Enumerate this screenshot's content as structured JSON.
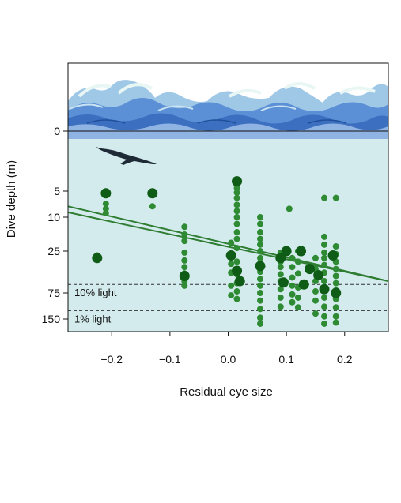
{
  "chart_data": {
    "type": "scatter",
    "title": "",
    "xlabel": "Residual eye size",
    "ylabel": "Dive depth (m)",
    "xlim": [
      -0.275,
      0.275
    ],
    "x_ticks": [
      -0.2,
      -0.1,
      0.0,
      0.1,
      0.2
    ],
    "x_tick_labels": [
      "−0.2",
      "−0.1",
      "0.0",
      "0.1",
      "0.2"
    ],
    "y_scale": "log-like (depth increases downward)",
    "y_ticks": [
      0,
      5,
      10,
      25,
      75,
      150
    ],
    "y_tick_labels": [
      "0",
      "5",
      "10",
      "25",
      "75",
      "150"
    ],
    "grid": false,
    "legend": "none",
    "reference_lines": [
      {
        "label": "10% light",
        "depth": 60,
        "style": "dashed"
      },
      {
        "label": "1% light",
        "depth": 120,
        "style": "dashed"
      }
    ],
    "regression_lines": [
      {
        "x": [
          -0.275,
          0.275
        ],
        "y": [
          7.5,
          55
        ]
      },
      {
        "x": [
          -0.275,
          0.275
        ],
        "y": [
          8.8,
          55
        ]
      }
    ],
    "points_small": [
      [
        -0.21,
        7
      ],
      [
        -0.21,
        8
      ],
      [
        -0.21,
        9
      ],
      [
        -0.225,
        28
      ],
      [
        -0.13,
        7.5
      ],
      [
        -0.075,
        13
      ],
      [
        -0.075,
        16
      ],
      [
        -0.075,
        19
      ],
      [
        -0.075,
        26
      ],
      [
        -0.075,
        32
      ],
      [
        -0.075,
        38
      ],
      [
        -0.075,
        45
      ],
      [
        -0.075,
        55
      ],
      [
        -0.075,
        62
      ],
      [
        0.005,
        20
      ],
      [
        0.005,
        28
      ],
      [
        0.005,
        35
      ],
      [
        0.005,
        44
      ],
      [
        0.005,
        62
      ],
      [
        0.005,
        80
      ],
      [
        0.015,
        4.5
      ],
      [
        0.015,
        5.2
      ],
      [
        0.015,
        6
      ],
      [
        0.015,
        7.2
      ],
      [
        0.015,
        8.5
      ],
      [
        0.015,
        10
      ],
      [
        0.015,
        12
      ],
      [
        0.015,
        15
      ],
      [
        0.015,
        18
      ],
      [
        0.015,
        23
      ],
      [
        0.015,
        33
      ],
      [
        0.015,
        46
      ],
      [
        0.015,
        58
      ],
      [
        0.015,
        72
      ],
      [
        0.015,
        88
      ],
      [
        0.055,
        10
      ],
      [
        0.055,
        12
      ],
      [
        0.055,
        15
      ],
      [
        0.055,
        18
      ],
      [
        0.055,
        21
      ],
      [
        0.055,
        25
      ],
      [
        0.055,
        30
      ],
      [
        0.055,
        36
      ],
      [
        0.055,
        43
      ],
      [
        0.055,
        52
      ],
      [
        0.055,
        62
      ],
      [
        0.055,
        75
      ],
      [
        0.055,
        92
      ],
      [
        0.055,
        115
      ],
      [
        0.055,
        145
      ],
      [
        0.055,
        170
      ],
      [
        0.09,
        26
      ],
      [
        0.09,
        33
      ],
      [
        0.09,
        38
      ],
      [
        0.09,
        46
      ],
      [
        0.09,
        55
      ],
      [
        0.09,
        68
      ],
      [
        0.09,
        85
      ],
      [
        0.09,
        108
      ],
      [
        0.105,
        8
      ],
      [
        0.11,
        30
      ],
      [
        0.11,
        38
      ],
      [
        0.11,
        50
      ],
      [
        0.11,
        62
      ],
      [
        0.11,
        78
      ],
      [
        0.11,
        96
      ],
      [
        0.12,
        25
      ],
      [
        0.12,
        33
      ],
      [
        0.12,
        45
      ],
      [
        0.12,
        65
      ],
      [
        0.12,
        85
      ],
      [
        0.12,
        110
      ],
      [
        0.15,
        30
      ],
      [
        0.15,
        40
      ],
      [
        0.15,
        55
      ],
      [
        0.15,
        72
      ],
      [
        0.15,
        92
      ],
      [
        0.15,
        130
      ],
      [
        0.165,
        6
      ],
      [
        0.165,
        17
      ],
      [
        0.165,
        21
      ],
      [
        0.165,
        26
      ],
      [
        0.165,
        30
      ],
      [
        0.165,
        36
      ],
      [
        0.165,
        44
      ],
      [
        0.165,
        55
      ],
      [
        0.165,
        68
      ],
      [
        0.165,
        85
      ],
      [
        0.165,
        108
      ],
      [
        0.165,
        140
      ],
      [
        0.165,
        170
      ],
      [
        0.185,
        6
      ],
      [
        0.185,
        22
      ],
      [
        0.185,
        27
      ],
      [
        0.185,
        33
      ],
      [
        0.185,
        40
      ],
      [
        0.185,
        48
      ],
      [
        0.185,
        58
      ],
      [
        0.185,
        70
      ],
      [
        0.185,
        88
      ],
      [
        0.185,
        110
      ],
      [
        0.185,
        140
      ],
      [
        0.185,
        165
      ]
    ],
    "points_large": [
      [
        -0.21,
        5.3
      ],
      [
        -0.13,
        5.3
      ],
      [
        -0.225,
        30
      ],
      [
        -0.075,
        48
      ],
      [
        0.015,
        3.5
      ],
      [
        0.005,
        28
      ],
      [
        0.015,
        42
      ],
      [
        0.02,
        55
      ],
      [
        0.055,
        37
      ],
      [
        0.09,
        30
      ],
      [
        0.1,
        25
      ],
      [
        0.125,
        25
      ],
      [
        0.095,
        57
      ],
      [
        0.13,
        60
      ],
      [
        0.14,
        40
      ],
      [
        0.155,
        47
      ],
      [
        0.165,
        68
      ],
      [
        0.18,
        28
      ],
      [
        0.185,
        75
      ]
    ]
  }
}
